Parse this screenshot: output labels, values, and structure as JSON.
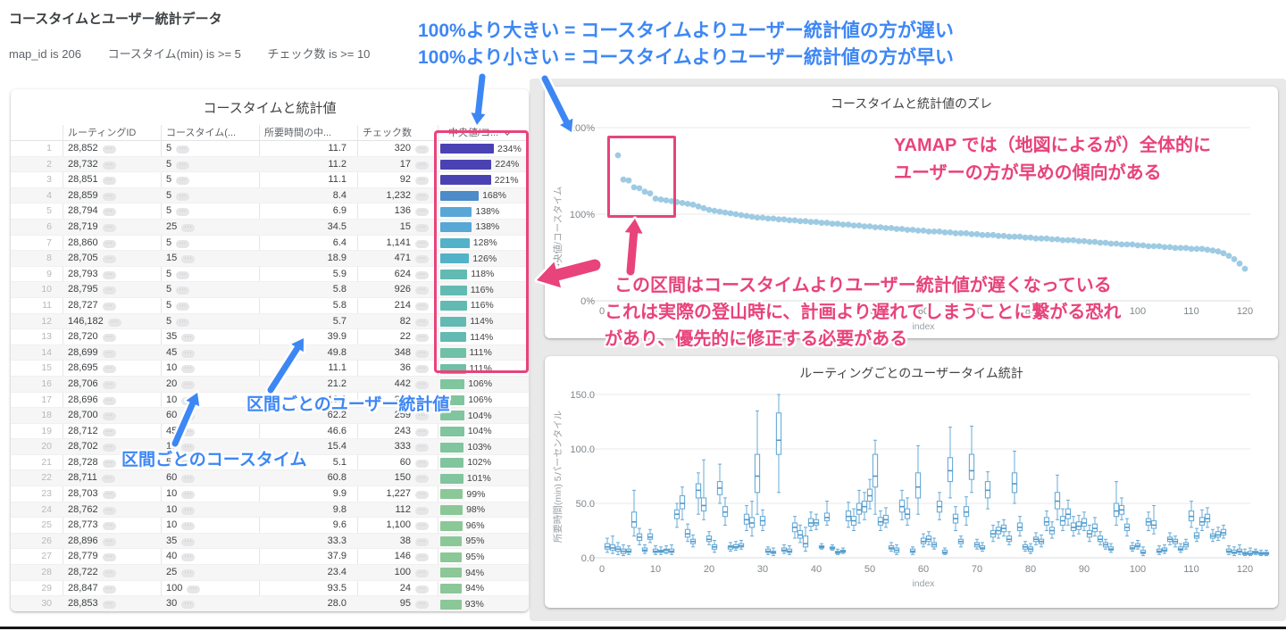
{
  "page": {
    "title": "コースタイムとユーザー統計データ",
    "filters": [
      "map_id is 206",
      "コースタイム(min) is >= 5",
      "チェック数 is >= 10"
    ]
  },
  "table": {
    "title": "コースタイムと統計値",
    "columns": [
      "ルーティングID",
      "コースタイム(...",
      "所要時間の中...",
      "チェック数",
      "中央値/コ..."
    ],
    "bar_max_percent": 234,
    "bar_color_stops": [
      [
        200,
        "#4a42b2"
      ],
      [
        160,
        "#4d8bc9"
      ],
      [
        132,
        "#58a7d6"
      ],
      [
        122,
        "#53b2c8"
      ],
      [
        113,
        "#62bab2"
      ],
      [
        109,
        "#70c0a8"
      ],
      [
        100,
        "#80c59d"
      ],
      [
        0,
        "#8cc798"
      ]
    ],
    "rows": [
      [
        "28,852",
        "5",
        "11.7",
        "320",
        234
      ],
      [
        "28,732",
        "5",
        "11.2",
        "17",
        224
      ],
      [
        "28,851",
        "5",
        "11.1",
        "92",
        221
      ],
      [
        "28,859",
        "5",
        "8.4",
        "1,232",
        168
      ],
      [
        "28,794",
        "5",
        "6.9",
        "136",
        138
      ],
      [
        "28,719",
        "25",
        "34.5",
        "15",
        138
      ],
      [
        "28,860",
        "5",
        "6.4",
        "1,141",
        128
      ],
      [
        "28,705",
        "15",
        "18.9",
        "471",
        126
      ],
      [
        "28,793",
        "5",
        "5.9",
        "624",
        118
      ],
      [
        "28,795",
        "5",
        "5.8",
        "926",
        116
      ],
      [
        "28,727",
        "5",
        "5.8",
        "214",
        116
      ],
      [
        "146,182",
        "5",
        "5.7",
        "82",
        114
      ],
      [
        "28,720",
        "35",
        "39.9",
        "22",
        114
      ],
      [
        "28,699",
        "45",
        "49.8",
        "348",
        111
      ],
      [
        "28,695",
        "10",
        "11.1",
        "36",
        111
      ],
      [
        "28,706",
        "20",
        "21.2",
        "442",
        106
      ],
      [
        "28,696",
        "10",
        "10.6",
        "283",
        106
      ],
      [
        "28,700",
        "60",
        "62.2",
        "259",
        104
      ],
      [
        "28,712",
        "45",
        "46.6",
        "243",
        104
      ],
      [
        "28,702",
        "15",
        "15.4",
        "333",
        103
      ],
      [
        "28,728",
        "5",
        "5.1",
        "60",
        102
      ],
      [
        "28,711",
        "60",
        "60.8",
        "150",
        101
      ],
      [
        "28,703",
        "10",
        "9.9",
        "1,227",
        99
      ],
      [
        "28,762",
        "10",
        "9.8",
        "112",
        98
      ],
      [
        "28,773",
        "10",
        "9.6",
        "1,100",
        96
      ],
      [
        "28,896",
        "35",
        "33.3",
        "38",
        95
      ],
      [
        "28,779",
        "40",
        "37.9",
        "146",
        95
      ],
      [
        "28,722",
        "25",
        "23.4",
        "100",
        94
      ],
      [
        "28,847",
        "100",
        "93.5",
        "24",
        94
      ],
      [
        "28,853",
        "30",
        "28.0",
        "95",
        93
      ]
    ]
  },
  "chart_data": [
    {
      "id": "scatter",
      "type": "scatter",
      "title": "コースタイムと統計値のズレ",
      "xlabel": "index",
      "ylabel": "中央値/コースタイム",
      "x_ticks": [
        0,
        10,
        20,
        30,
        40,
        50,
        60,
        70,
        80,
        90,
        100,
        110,
        120
      ],
      "y_ticks": [
        "200%",
        "100%",
        "0%"
      ],
      "ylim": [
        0,
        200
      ],
      "xlim": [
        0,
        125
      ],
      "grid": true,
      "start_index": 3,
      "values": [
        168,
        140,
        139,
        131,
        130,
        126,
        124,
        118,
        117,
        116,
        115,
        114,
        113,
        112,
        111,
        109,
        107,
        105,
        104,
        103,
        102,
        101,
        100,
        99,
        98,
        97,
        96,
        96,
        95,
        95,
        94,
        94,
        93,
        93,
        92,
        92,
        91,
        91,
        90,
        90,
        89,
        89,
        88,
        88,
        87,
        87,
        86,
        86,
        85,
        85,
        84,
        84,
        83,
        83,
        82,
        82,
        81,
        81,
        80,
        80,
        80,
        79,
        79,
        78,
        78,
        78,
        77,
        77,
        76,
        76,
        76,
        75,
        75,
        74,
        74,
        74,
        73,
        73,
        72,
        72,
        72,
        71,
        71,
        70,
        70,
        70,
        69,
        69,
        68,
        68,
        67,
        67,
        66,
        66,
        65,
        65,
        65,
        64,
        64,
        63,
        63,
        63,
        62,
        62,
        61,
        61,
        61,
        60,
        60,
        60,
        59,
        58,
        57,
        55,
        52,
        48,
        43,
        37
      ]
    },
    {
      "id": "boxplot",
      "type": "boxplot",
      "title": "ルーティングごとのユーザータイム統計",
      "xlabel": "index",
      "ylabel": "所要時間(min) 5パーセンタイル",
      "x_ticks": [
        0,
        10,
        20,
        30,
        40,
        50,
        60,
        70,
        80,
        90,
        100,
        110,
        120
      ],
      "y_tick_labels": [
        "0.0",
        "50.0",
        "100.0",
        "150.0"
      ],
      "ylim": [
        0,
        150
      ],
      "xlim": [
        0,
        125
      ],
      "grid": true,
      "boxes": [
        [
          5,
          8,
          10,
          13,
          18
        ],
        [
          4,
          7,
          9,
          12,
          20
        ],
        [
          3,
          6,
          8,
          10,
          14
        ],
        [
          2,
          4,
          6,
          8,
          12
        ],
        [
          3,
          5,
          6,
          8,
          11
        ],
        [
          20,
          28,
          33,
          42,
          62
        ],
        [
          12,
          16,
          19,
          22,
          27
        ],
        [
          4,
          6,
          7,
          9,
          12
        ],
        [
          14,
          17,
          19,
          22,
          26
        ],
        [
          3,
          5,
          6,
          8,
          11
        ],
        [
          3,
          5,
          6,
          7,
          10
        ],
        [
          4,
          5,
          7,
          8,
          11
        ],
        [
          3,
          5,
          6,
          8,
          12
        ],
        [
          28,
          36,
          40,
          44,
          50
        ],
        [
          35,
          45,
          50,
          57,
          65
        ],
        [
          15,
          19,
          22,
          26,
          31
        ],
        [
          10,
          13,
          15,
          17,
          21
        ],
        [
          40,
          55,
          62,
          68,
          78
        ],
        [
          35,
          43,
          48,
          55,
          90
        ],
        [
          12,
          15,
          17,
          20,
          24
        ],
        [
          5,
          8,
          10,
          12,
          16
        ],
        [
          50,
          58,
          64,
          70,
          86
        ],
        [
          30,
          38,
          42,
          47,
          55
        ],
        [
          6,
          8,
          10,
          11,
          14
        ],
        [
          7,
          9,
          10,
          12,
          15
        ],
        [
          8,
          10,
          11,
          13,
          16
        ],
        [
          25,
          31,
          35,
          40,
          48
        ],
        [
          20,
          28,
          32,
          37,
          52
        ],
        [
          40,
          60,
          75,
          95,
          135
        ],
        [
          25,
          30,
          34,
          38,
          44
        ],
        [
          3,
          5,
          6,
          8,
          10
        ],
        [
          2,
          4,
          5,
          6,
          9
        ],
        [
          60,
          95,
          108,
          133,
          150
        ],
        [
          4,
          6,
          7,
          9,
          12
        ],
        [
          3,
          5,
          6,
          8,
          11
        ],
        [
          18,
          24,
          28,
          32,
          38
        ],
        [
          14,
          18,
          21,
          25,
          30
        ],
        [
          6,
          10,
          13,
          20,
          28
        ],
        [
          25,
          29,
          32,
          36,
          42
        ],
        [
          26,
          30,
          32,
          35,
          40
        ],
        [
          8,
          9,
          10,
          11,
          13
        ],
        [
          30,
          34,
          37,
          41,
          52
        ],
        [
          7,
          8,
          9,
          10,
          12
        ],
        [
          3,
          4,
          5,
          6,
          8
        ],
        [
          4,
          5,
          6,
          7,
          9
        ],
        [
          28,
          34,
          38,
          43,
          51
        ],
        [
          25,
          30,
          34,
          38,
          45
        ],
        [
          32,
          40,
          44,
          50,
          62
        ],
        [
          35,
          42,
          47,
          52,
          60
        ],
        [
          45,
          52,
          57,
          63,
          72
        ],
        [
          40,
          65,
          75,
          95,
          108
        ],
        [
          25,
          30,
          33,
          37,
          43
        ],
        [
          28,
          32,
          35,
          39,
          46
        ],
        [
          6,
          8,
          9,
          11,
          14
        ],
        [
          3,
          5,
          7,
          9,
          12
        ],
        [
          35,
          42,
          47,
          53,
          62
        ],
        [
          30,
          36,
          40,
          45,
          55
        ],
        [
          3,
          5,
          6,
          8,
          10
        ],
        [
          40,
          55,
          65,
          78,
          103
        ],
        [
          10,
          13,
          15,
          18,
          22
        ],
        [
          12,
          15,
          17,
          20,
          24
        ],
        [
          8,
          10,
          12,
          14,
          18
        ],
        [
          35,
          42,
          47,
          52,
          60
        ],
        [
          3,
          4,
          5,
          7,
          9
        ],
        [
          55,
          70,
          80,
          92,
          120
        ],
        [
          25,
          32,
          36,
          40,
          47
        ],
        [
          10,
          13,
          15,
          17,
          20
        ],
        [
          30,
          38,
          42,
          47,
          56
        ],
        [
          60,
          72,
          80,
          95,
          121
        ],
        [
          8,
          10,
          12,
          14,
          17
        ],
        [
          6,
          8,
          9,
          11,
          14
        ],
        [
          45,
          55,
          62,
          70,
          79
        ],
        [
          15,
          19,
          22,
          25,
          30
        ],
        [
          18,
          22,
          25,
          28,
          33
        ],
        [
          20,
          24,
          27,
          30,
          35
        ],
        [
          12,
          15,
          17,
          20,
          24
        ],
        [
          50,
          60,
          68,
          78,
          98
        ],
        [
          20,
          25,
          28,
          32,
          38
        ],
        [
          6,
          8,
          10,
          12,
          15
        ],
        [
          4,
          6,
          8,
          10,
          13
        ],
        [
          12,
          15,
          17,
          19,
          23
        ],
        [
          10,
          13,
          15,
          17,
          21
        ],
        [
          25,
          30,
          33,
          37,
          43
        ],
        [
          18,
          22,
          25,
          28,
          33
        ],
        [
          35,
          45,
          52,
          60,
          76
        ],
        [
          25,
          30,
          34,
          38,
          45
        ],
        [
          30,
          36,
          40,
          45,
          53
        ],
        [
          20,
          25,
          28,
          32,
          38
        ],
        [
          22,
          26,
          29,
          33,
          39
        ],
        [
          25,
          29,
          32,
          36,
          42
        ],
        [
          15,
          19,
          22,
          25,
          30
        ],
        [
          20,
          24,
          27,
          31,
          37
        ],
        [
          12,
          15,
          17,
          20,
          24
        ],
        [
          8,
          10,
          12,
          14,
          17
        ],
        [
          5,
          7,
          8,
          10,
          13
        ],
        [
          30,
          38,
          43,
          50,
          70
        ],
        [
          35,
          40,
          44,
          48,
          55
        ],
        [
          20,
          25,
          28,
          31,
          36
        ],
        [
          6,
          8,
          9,
          11,
          14
        ],
        [
          8,
          10,
          11,
          13,
          16
        ],
        [
          2,
          4,
          5,
          7,
          10
        ],
        [
          25,
          30,
          33,
          36,
          42
        ],
        [
          22,
          27,
          30,
          34,
          48
        ],
        [
          3,
          5,
          6,
          8,
          11
        ],
        [
          4,
          6,
          7,
          9,
          12
        ],
        [
          12,
          15,
          17,
          19,
          23
        ],
        [
          10,
          13,
          15,
          17,
          20
        ],
        [
          5,
          7,
          8,
          10,
          13
        ],
        [
          8,
          10,
          12,
          14,
          17
        ],
        [
          28,
          34,
          38,
          43,
          52
        ],
        [
          15,
          18,
          20,
          23,
          27
        ],
        [
          25,
          30,
          33,
          37,
          44
        ],
        [
          28,
          33,
          36,
          40,
          46
        ],
        [
          15,
          18,
          20,
          22,
          26
        ],
        [
          16,
          19,
          21,
          24,
          28
        ],
        [
          18,
          21,
          23,
          26,
          30
        ],
        [
          3,
          5,
          6,
          8,
          11
        ],
        [
          2,
          4,
          5,
          7,
          10
        ],
        [
          3,
          5,
          6,
          8,
          12
        ],
        [
          2,
          3,
          4,
          5,
          8
        ],
        [
          2,
          3,
          4,
          6,
          9
        ],
        [
          3,
          4,
          5,
          6,
          8
        ],
        [
          2,
          3,
          4,
          5,
          7
        ],
        [
          2,
          3,
          4,
          5,
          7
        ]
      ]
    }
  ],
  "annotations": {
    "blue_top_line1": "100%より大きい = コースタイムよりユーザー統計値の方が遅い",
    "blue_top_line2": "100%より小さい = コースタイムよりユーザー統計値の方が早い",
    "blue_user_stat": "区間ごとのユーザー統計値",
    "blue_course_time": "区間ごとのコースタイム",
    "pink_yamap_line1": "YAMAP では（地図によるが）全体的に",
    "pink_yamap_line2": "ユーザーの方が早めの傾向がある",
    "pink_slow_line1": "この区間はコースタイムよりユーザー統計値が遅くなっている",
    "pink_slow_line2": "これは実際の登山時に、計画より遅れてしまうことに繋がる恐れ",
    "pink_slow_line3": "があり、優先的に修正する必要がある"
  },
  "colors": {
    "annotation_blue": "#3d87f5",
    "annotation_pink": "#e8437a",
    "scatter_point": "#8dc2de",
    "box_stroke": "#68abd7",
    "box_median": "#4e98ca",
    "grid": "#e8e8e8",
    "axis_text": "#80868b"
  }
}
